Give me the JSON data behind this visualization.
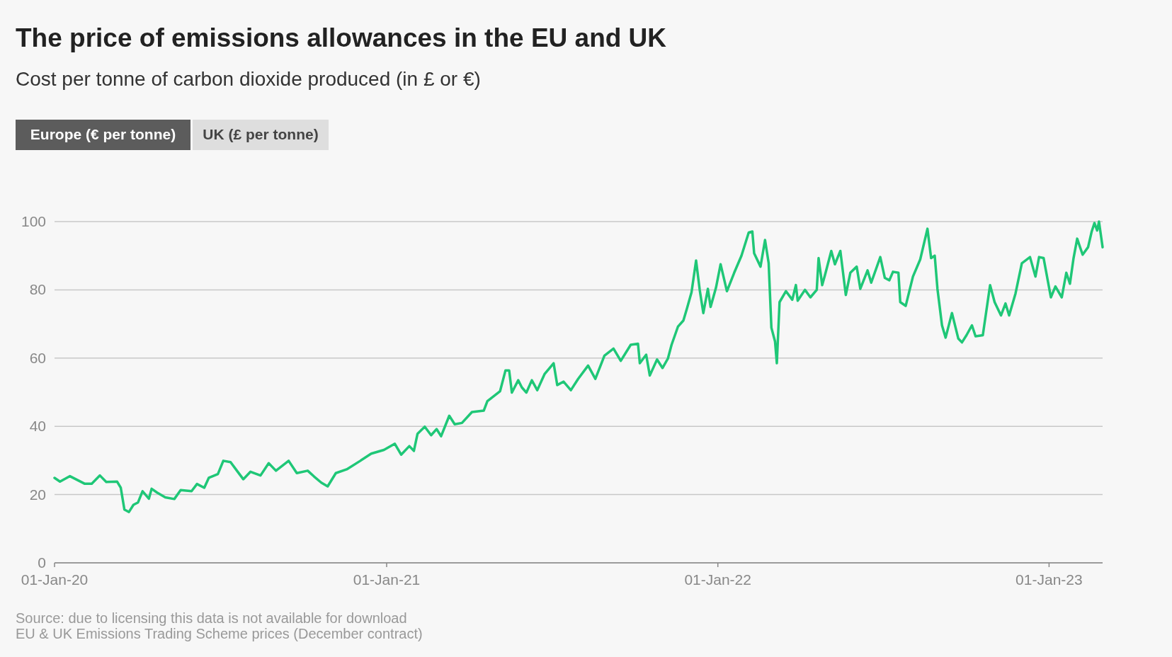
{
  "chart_data": {
    "type": "line",
    "title": "The price of emissions allowances in the EU and UK",
    "subtitle": "Cost per tonne of carbon dioxide produced (in £ or €)",
    "annotations": [
      "Europe (€ per tonne)",
      "UK (£ per tonne)",
      "Source: due to licensing this data is not available for download",
      "EU & UK Emissions Trading Scheme prices (December contract)"
    ],
    "x": [
      "2020-01-01",
      "2020-01-07",
      "2020-01-18",
      "2020-02-03",
      "2020-02-11",
      "2020-02-20",
      "2020-02-27",
      "2020-03-10",
      "2020-03-14",
      "2020-03-18",
      "2020-03-23",
      "2020-03-28",
      "2020-04-02",
      "2020-04-07",
      "2020-04-14",
      "2020-04-17",
      "2020-04-23",
      "2020-05-02",
      "2020-05-12",
      "2020-05-19",
      "2020-05-31",
      "2020-06-06",
      "2020-06-14",
      "2020-06-19",
      "2020-06-29",
      "2020-07-05",
      "2020-07-13",
      "2020-07-20",
      "2020-07-27",
      "2020-08-04",
      "2020-08-15",
      "2020-08-24",
      "2020-09-01",
      "2020-09-15",
      "2020-09-24",
      "2020-10-06",
      "2020-10-13",
      "2020-10-21",
      "2020-10-28",
      "2020-11-06",
      "2020-11-18",
      "2020-12-03",
      "2020-12-15",
      "2020-12-29",
      "2021-01-10",
      "2021-01-17",
      "2021-01-26",
      "2021-01-31",
      "2021-02-04",
      "2021-02-12",
      "2021-02-19",
      "2021-02-25",
      "2021-03-02",
      "2021-03-11",
      "2021-03-17",
      "2021-03-25",
      "2021-04-05",
      "2021-04-18",
      "2021-04-22",
      "2021-05-06",
      "2021-05-12",
      "2021-05-16",
      "2021-05-19",
      "2021-05-26",
      "2021-05-30",
      "2021-06-04",
      "2021-06-10",
      "2021-06-16",
      "2021-06-24",
      "2021-07-04",
      "2021-07-08",
      "2021-07-15",
      "2021-07-23",
      "2021-07-31",
      "2021-08-11",
      "2021-08-19",
      "2021-08-29",
      "2021-09-08",
      "2021-09-16",
      "2021-09-27",
      "2021-10-05",
      "2021-10-07",
      "2021-10-14",
      "2021-10-18",
      "2021-10-26",
      "2021-11-01",
      "2021-11-07",
      "2021-11-11",
      "2021-11-18",
      "2021-11-24",
      "2021-11-28",
      "2021-12-03",
      "2021-12-08",
      "2021-12-12",
      "2021-12-16",
      "2021-12-21",
      "2021-12-24",
      "2021-12-30",
      "2022-01-04",
      "2022-01-11",
      "2022-01-19",
      "2022-01-27",
      "2022-02-04",
      "2022-02-08",
      "2022-02-10",
      "2022-02-17",
      "2022-02-22",
      "2022-02-26",
      "2022-03-01",
      "2022-03-05",
      "2022-03-07",
      "2022-03-10",
      "2022-03-17",
      "2022-03-24",
      "2022-03-28",
      "2022-03-30",
      "2022-04-07",
      "2022-04-13",
      "2022-04-20",
      "2022-04-22",
      "2022-04-26",
      "2022-04-29",
      "2022-05-06",
      "2022-05-10",
      "2022-05-16",
      "2022-05-22",
      "2022-05-27",
      "2022-06-03",
      "2022-06-07",
      "2022-06-15",
      "2022-06-19",
      "2022-06-29",
      "2022-07-04",
      "2022-07-09",
      "2022-07-13",
      "2022-07-19",
      "2022-07-21",
      "2022-07-27",
      "2022-08-04",
      "2022-08-12",
      "2022-08-20",
      "2022-08-24",
      "2022-08-28",
      "2022-08-31",
      "2022-09-05",
      "2022-09-09",
      "2022-09-16",
      "2022-09-23",
      "2022-09-27",
      "2022-10-02",
      "2022-10-08",
      "2022-10-12",
      "2022-10-20",
      "2022-10-28",
      "2022-11-02",
      "2022-11-09",
      "2022-11-14",
      "2022-11-18",
      "2022-11-25",
      "2022-12-02",
      "2022-12-11",
      "2022-12-17",
      "2022-12-21",
      "2022-12-26",
      "2023-01-03",
      "2023-01-08",
      "2023-01-15",
      "2023-01-20",
      "2023-01-24",
      "2023-01-28",
      "2023-02-01",
      "2023-02-07",
      "2023-02-13",
      "2023-02-17",
      "2023-02-20",
      "2023-02-23",
      "2023-02-25",
      "2023-03-01"
    ],
    "series": [
      {
        "color": "#1fc777",
        "values": [
          24.9,
          23.8,
          25.4,
          23.2,
          23.2,
          25.6,
          23.7,
          23.8,
          22.0,
          15.6,
          14.9,
          17.0,
          17.7,
          21.0,
          18.8,
          21.7,
          20.6,
          19.2,
          18.7,
          21.3,
          21.0,
          23.1,
          22.0,
          24.9,
          26.0,
          29.9,
          29.5,
          27.0,
          24.5,
          26.7,
          25.6,
          29.2,
          27.0,
          29.9,
          26.3,
          27.0,
          25.3,
          23.5,
          22.4,
          26.3,
          27.4,
          29.9,
          32.0,
          33.1,
          34.9,
          31.7,
          34.2,
          32.8,
          37.8,
          39.9,
          37.4,
          39.2,
          37.1,
          43.1,
          40.6,
          41.0,
          44.2,
          44.6,
          47.4,
          50.3,
          56.4,
          56.4,
          49.9,
          53.5,
          51.4,
          49.9,
          53.5,
          50.6,
          55.3,
          58.5,
          52.1,
          53.1,
          50.6,
          53.9,
          57.8,
          53.9,
          60.7,
          62.8,
          59.2,
          63.9,
          64.2,
          58.5,
          61.0,
          54.9,
          59.6,
          57.1,
          59.9,
          63.9,
          69.2,
          71.0,
          74.6,
          79.3,
          88.6,
          80.0,
          73.2,
          80.3,
          75.0,
          80.7,
          87.5,
          79.6,
          85.0,
          90.0,
          96.8,
          97.1,
          90.7,
          86.8,
          94.6,
          87.8,
          68.9,
          64.9,
          58.5,
          76.4,
          79.6,
          77.1,
          81.4,
          76.8,
          80.0,
          77.8,
          80.0,
          89.3,
          81.4,
          84.3,
          91.4,
          87.5,
          91.4,
          78.5,
          85.0,
          86.8,
          80.3,
          85.7,
          82.1,
          89.6,
          83.5,
          82.8,
          85.3,
          85.0,
          76.4,
          75.3,
          83.9,
          88.9,
          97.9,
          89.3,
          90.0,
          80.3,
          69.6,
          66.0,
          73.2,
          65.7,
          64.6,
          66.7,
          69.6,
          66.4,
          66.7,
          81.4,
          76.4,
          72.5,
          76.0,
          72.5,
          78.9,
          87.8,
          89.6,
          83.9,
          89.6,
          89.3,
          77.8,
          81.0,
          77.8,
          85.0,
          81.8,
          89.3,
          95.0,
          90.3,
          92.5,
          97.1,
          99.6,
          97.4,
          100,
          92.5
        ]
      }
    ],
    "xlim": [
      "2020-01-01",
      "2023-03-01"
    ],
    "xticks": [
      {
        "value": "2020-01-01",
        "label": "01-Jan-20"
      },
      {
        "value": "2021-01-01",
        "label": "01-Jan-21"
      },
      {
        "value": "2022-01-01",
        "label": "01-Jan-22"
      },
      {
        "value": "2023-01-01",
        "label": "01-Jan-23"
      }
    ],
    "ylim": [
      0,
      100
    ],
    "yticks": [
      0,
      20,
      40,
      60,
      80,
      100
    ],
    "grid": "y",
    "line_style": "solid"
  }
}
